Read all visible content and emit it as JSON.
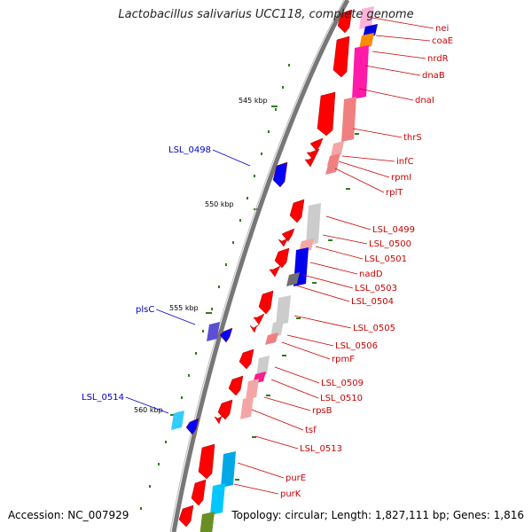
{
  "title": "Lactobacillus salivarius UCC118, complete genome",
  "footer": {
    "accession": "Accession: NC_007929",
    "topology": "Topology: circular; Length: 1,827,111 bp; Genes: 1,816"
  },
  "colors": {
    "forward_strand": "#ff0000",
    "reverse_strand": "#0000ff",
    "forward_label": "#cc0000",
    "reverse_label": "#0000cc",
    "backbone": "#808080",
    "tick": "#2e7d1a"
  },
  "scale_labels": [
    "545 kbp",
    "550 kbp",
    "555 kbp",
    "560 kbp"
  ],
  "forward_genes": [
    "nei",
    "coaE",
    "nrdR",
    "dnaB",
    "dnaI",
    "thrS",
    "infC",
    "rpmI",
    "rplT",
    "LSL_0499",
    "LSL_0500",
    "LSL_0501",
    "nadD",
    "LSL_0503",
    "LSL_0504",
    "LSL_0505",
    "LSL_0506",
    "rpmF",
    "LSL_0509",
    "LSL_0510",
    "rpsB",
    "tsf",
    "LSL_0513",
    "purE",
    "purK"
  ],
  "reverse_genes": [
    "LSL_0498",
    "plsC",
    "LSL_0514"
  ]
}
